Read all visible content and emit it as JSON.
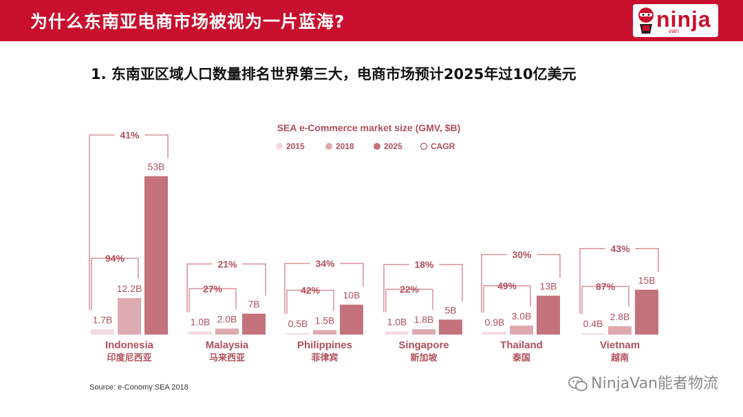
{
  "header": {
    "title": "为什么东南亚电商市场被视为一片蓝海?",
    "logo_text": "ninja",
    "logo_sub": "van"
  },
  "subtitle": "1. 东南亚区域人口数量排名世界第三大，电商市场预计2025年过10亿美元",
  "source": "Source: e-Conomy SEA 2018",
  "watermark": "NinjaVan能者物流",
  "colors": {
    "brand": "#c8102e",
    "y2015": "#f1dadd",
    "y2018": "#dcaab0",
    "y2025": "#c4727c",
    "label": "#b0505c",
    "bracket": "#d88f97"
  },
  "chart_data": {
    "type": "bar",
    "title": "SEA e-Commerce market size (GMV, $B)",
    "legend": [
      "2015",
      "2018",
      "2025",
      "CAGR"
    ],
    "series_names": [
      "2015",
      "2018",
      "2025"
    ],
    "countries": [
      {
        "name": "Indonesia",
        "name_cn": "印度尼西亚",
        "values": [
          1.7,
          12.2,
          53
        ],
        "labels": [
          "1.7B",
          "12.2B",
          "53B"
        ],
        "cagr_short": "94%",
        "cagr_long": "41%"
      },
      {
        "name": "Malaysia",
        "name_cn": "马来西亚",
        "values": [
          1.0,
          2.0,
          7
        ],
        "labels": [
          "1.0B",
          "2.0B",
          "7B"
        ],
        "cagr_short": "27%",
        "cagr_long": "21%"
      },
      {
        "name": "Philippines",
        "name_cn": "菲律宾",
        "values": [
          0.5,
          1.5,
          10
        ],
        "labels": [
          "0.5B",
          "1.5B",
          "10B"
        ],
        "cagr_short": "42%",
        "cagr_long": "34%"
      },
      {
        "name": "Singapore",
        "name_cn": "新加坡",
        "values": [
          1.0,
          1.8,
          5
        ],
        "labels": [
          "1.0B",
          "1.8B",
          "5B"
        ],
        "cagr_short": "22%",
        "cagr_long": "18%"
      },
      {
        "name": "Thailand",
        "name_cn": "泰国",
        "values": [
          0.9,
          3.0,
          13
        ],
        "labels": [
          "0.9B",
          "3.0B",
          "13B"
        ],
        "cagr_short": "49%",
        "cagr_long": "30%"
      },
      {
        "name": "Vietnam",
        "name_cn": "越南",
        "values": [
          0.4,
          2.8,
          15
        ],
        "labels": [
          "0.4B",
          "2.8B",
          "15B"
        ],
        "cagr_short": "87%",
        "cagr_long": "43%"
      }
    ]
  }
}
